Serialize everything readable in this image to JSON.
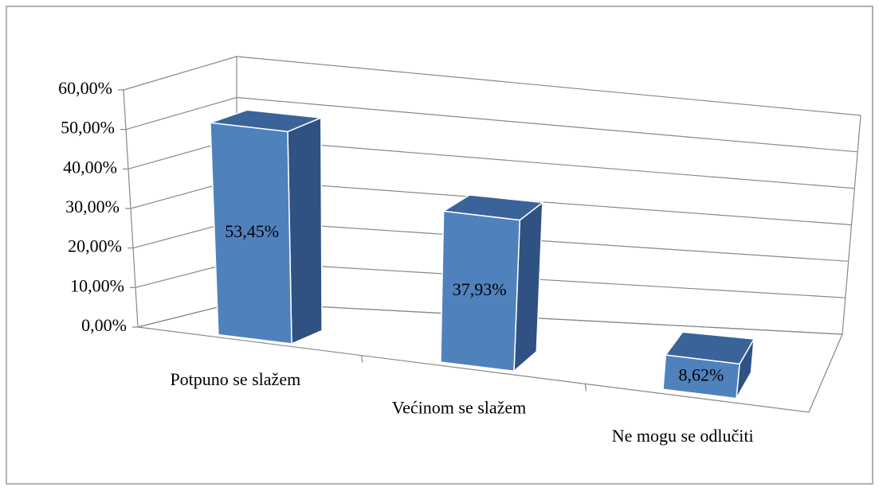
{
  "chart_data": {
    "type": "bar3d",
    "categories": [
      "Potpuno se slažem",
      "Većinom se slažem",
      "Ne mogu se odlučiti"
    ],
    "values": [
      53.45,
      37.93,
      8.62
    ],
    "value_labels": [
      "53,45%",
      "37,93%",
      "8,62%"
    ],
    "color": "#4f81bd",
    "ylim": [
      0,
      60
    ],
    "yticks": [
      {
        "value": 0,
        "label": "0,00%"
      },
      {
        "value": 10,
        "label": "10,00%"
      },
      {
        "value": 20,
        "label": "20,00%"
      },
      {
        "value": 30,
        "label": "30,00%"
      },
      {
        "value": 40,
        "label": "40,00%"
      },
      {
        "value": 50,
        "label": "50,00%"
      },
      {
        "value": 60,
        "label": "60,00%"
      }
    ],
    "grid": true
  }
}
